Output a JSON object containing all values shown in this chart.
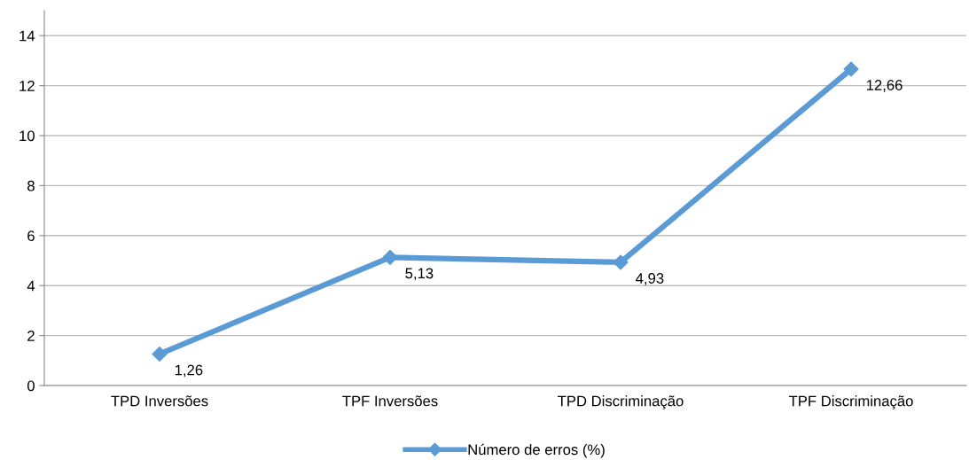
{
  "chart_data": {
    "type": "line",
    "categories": [
      "TPD Inversões",
      "TPF Inversões",
      "TPD Discriminação",
      "TPF Discriminação"
    ],
    "series": [
      {
        "name": "Número de erros (%)",
        "color": "#5b9bd5",
        "values": [
          1.26,
          5.13,
          4.93,
          12.66
        ],
        "value_labels": [
          "1,26",
          "5,13",
          "4,93",
          "12,66"
        ]
      }
    ],
    "ylim": [
      0,
      15
    ],
    "yticks": [
      0,
      2,
      4,
      6,
      8,
      10,
      12,
      14
    ],
    "grid": "y",
    "legend": "bottom",
    "marker": "diamond",
    "line_style": "solid"
  }
}
